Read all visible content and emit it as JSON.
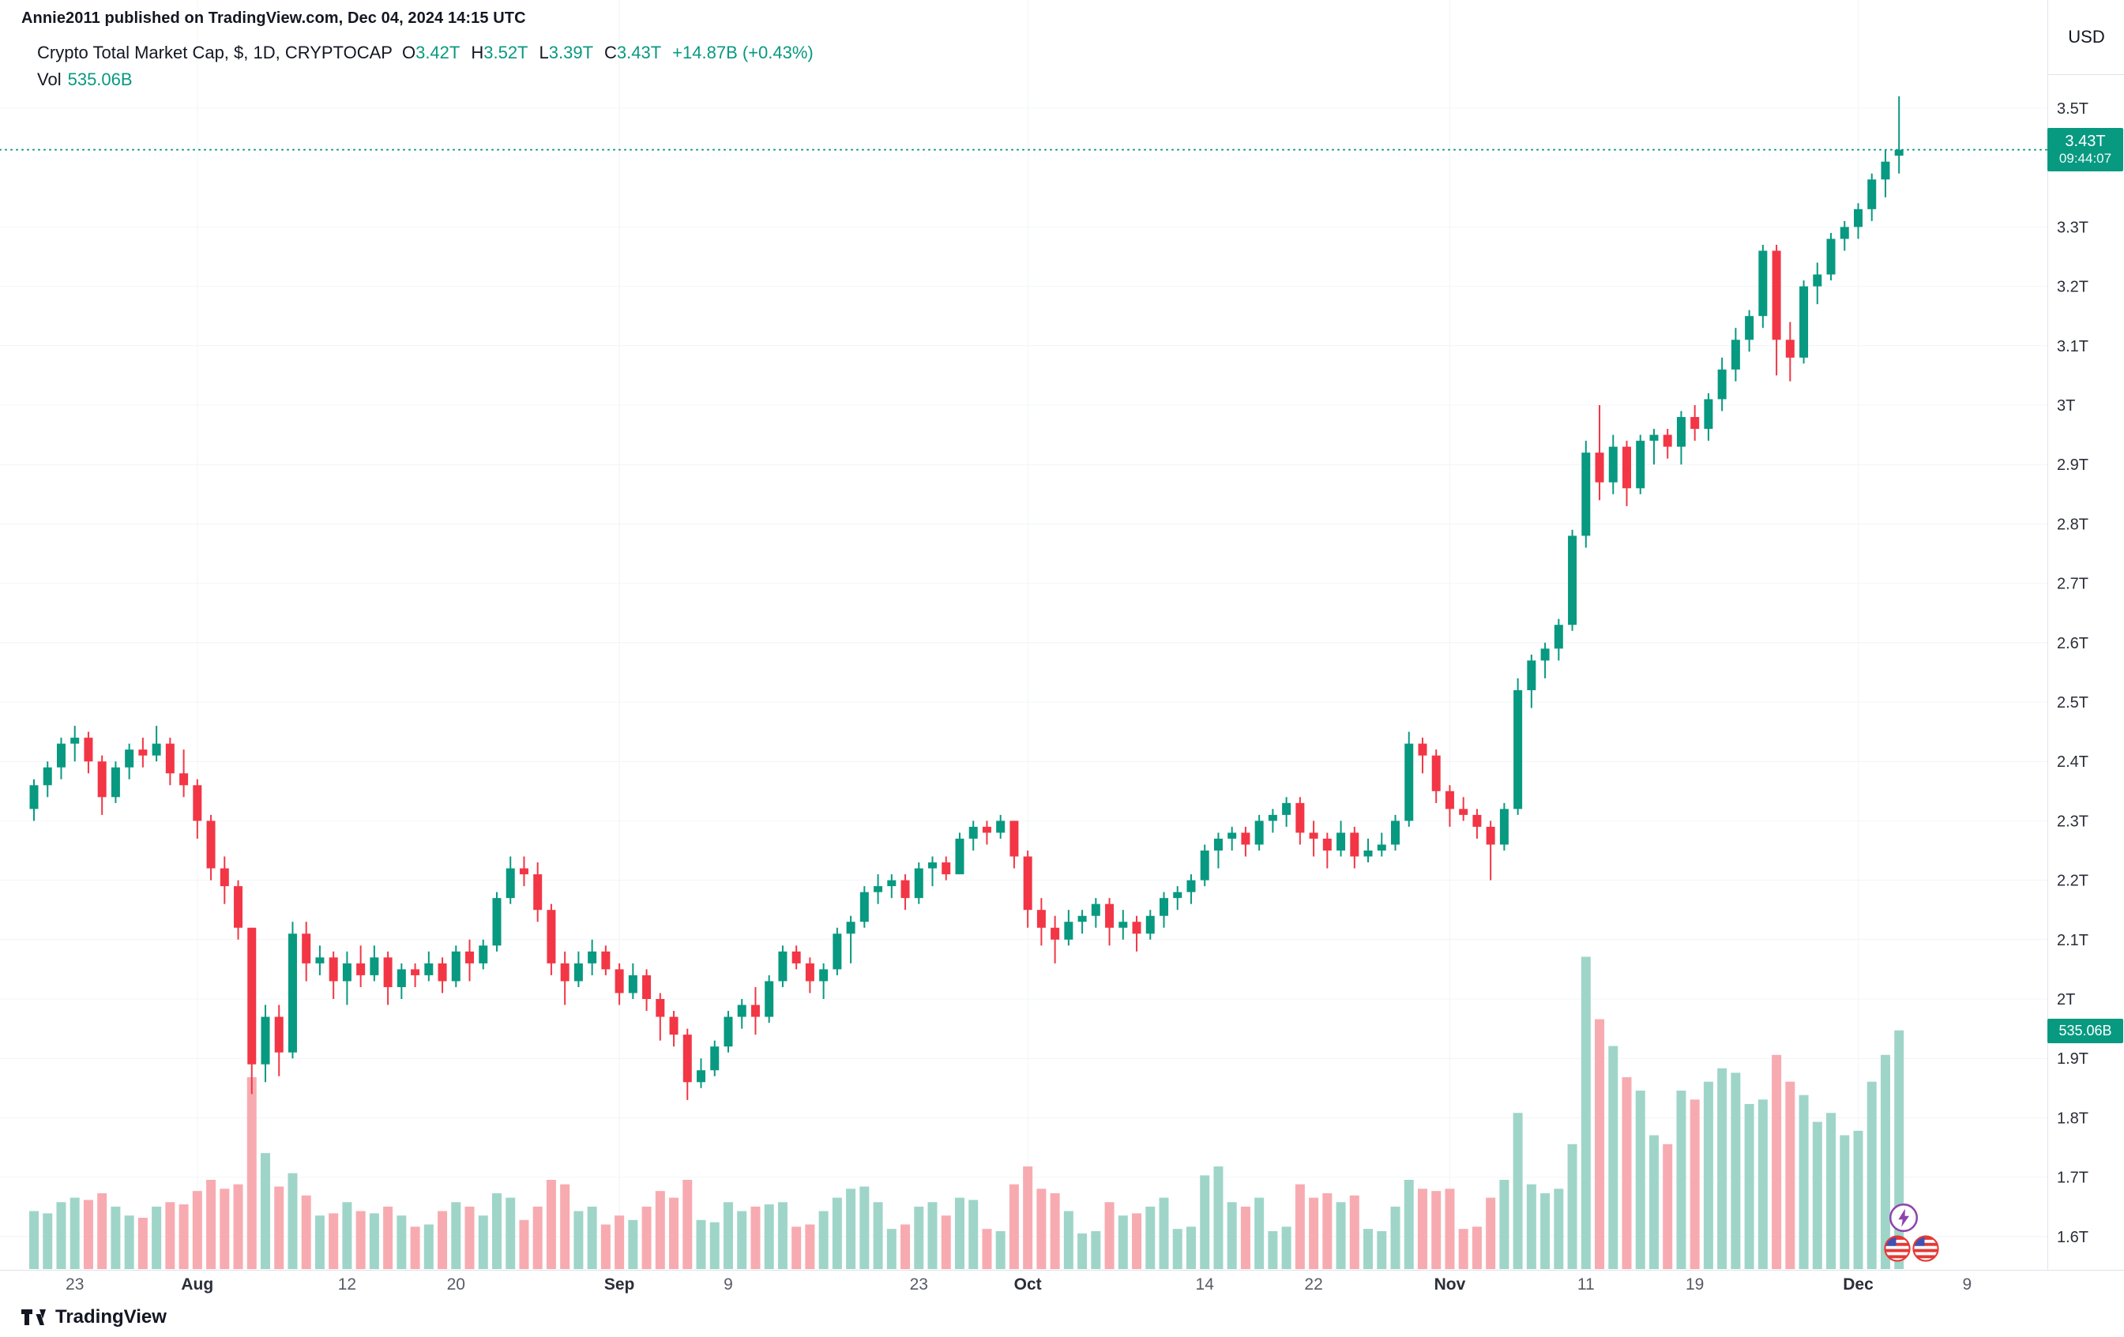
{
  "attribution": "Annie2011 published on TradingView.com, Dec 04, 2024 14:15 UTC",
  "legend": {
    "title": "Crypto Total Market Cap, $, 1D, CRYPTOCAP",
    "ohlc": [
      {
        "label": "O",
        "value": "3.42T"
      },
      {
        "label": "H",
        "value": "3.52T"
      },
      {
        "label": "L",
        "value": "3.39T"
      },
      {
        "label": "C",
        "value": "3.43T"
      }
    ],
    "change": "+14.87B (+0.43%)",
    "vol_label": "Vol",
    "vol_value": "535.06B"
  },
  "axis": {
    "currency": "USD",
    "price_badge": {
      "value": "3.43T",
      "countdown": "09:44:07"
    },
    "volume_badge": "535.06B"
  },
  "watermark": "TradingView",
  "colors": {
    "up": "#089981",
    "down": "#f23645",
    "volume_up": "#9fd5c9",
    "volume_down": "#f7abb0",
    "accent": "#089981",
    "badge_bg": "#089981",
    "grid": "#f2f4f8",
    "axis_line": "#e0e3eb",
    "axis_text": "#2a2e39",
    "axis_text_minor": "#585b65",
    "marker_purple": "#8e44ad",
    "marker_red": "#e53935",
    "marker_blue": "#3f51b5"
  },
  "chart_data": {
    "type": "candlestick",
    "title": "Crypto Total Market Cap, $, 1D, CRYPTOCAP",
    "symbol": "CRYPTOCAP:TOTAL",
    "interval": "1D",
    "price_unit": "T USD",
    "volume_unit": "B USD",
    "last_price": 3.43,
    "last_volume": 535.06,
    "ylim": [
      1.56,
      3.58
    ],
    "grid": "faint",
    "legend_position": "top-left",
    "y_ticks": [
      {
        "p": 3.5,
        "label": "3.5T"
      },
      {
        "p": 3.3,
        "label": "3.3T"
      },
      {
        "p": 3.2,
        "label": "3.2T"
      },
      {
        "p": 3.1,
        "label": "3.1T"
      },
      {
        "p": 3.0,
        "label": "3T"
      },
      {
        "p": 2.9,
        "label": "2.9T"
      },
      {
        "p": 2.8,
        "label": "2.8T"
      },
      {
        "p": 2.7,
        "label": "2.7T"
      },
      {
        "p": 2.6,
        "label": "2.6T"
      },
      {
        "p": 2.5,
        "label": "2.5T"
      },
      {
        "p": 2.4,
        "label": "2.4T"
      },
      {
        "p": 2.3,
        "label": "2.3T"
      },
      {
        "p": 2.2,
        "label": "2.2T"
      },
      {
        "p": 2.1,
        "label": "2.1T"
      },
      {
        "p": 2.0,
        "label": "2T"
      },
      {
        "p": 1.9,
        "label": "1.9T"
      },
      {
        "p": 1.8,
        "label": "1.8T"
      },
      {
        "p": 1.7,
        "label": "1.7T"
      },
      {
        "p": 1.6,
        "label": "1.6T"
      }
    ],
    "x_ticks": [
      {
        "label": "23",
        "index": 3
      },
      {
        "label": "Aug",
        "index": 12,
        "major": true
      },
      {
        "label": "12",
        "index": 23
      },
      {
        "label": "20",
        "index": 31
      },
      {
        "label": "Sep",
        "index": 43,
        "major": true
      },
      {
        "label": "9",
        "index": 51
      },
      {
        "label": "23",
        "index": 65
      },
      {
        "label": "Oct",
        "index": 73,
        "major": true
      },
      {
        "label": "14",
        "index": 86
      },
      {
        "label": "22",
        "index": 94
      },
      {
        "label": "Nov",
        "index": 104,
        "major": true
      },
      {
        "label": "11",
        "index": 114
      },
      {
        "label": "19",
        "index": 122
      },
      {
        "label": "Dec",
        "index": 134,
        "major": true
      },
      {
        "label": "9",
        "index": 142
      }
    ],
    "candles_format": [
      "date",
      "open",
      "high",
      "low",
      "close",
      "volume_billions"
    ],
    "candles": [
      [
        "Jul 20",
        2.32,
        2.37,
        2.3,
        2.36,
        130
      ],
      [
        "Jul 21",
        2.36,
        2.4,
        2.34,
        2.39,
        125
      ],
      [
        "Jul 22",
        2.39,
        2.44,
        2.37,
        2.43,
        150
      ],
      [
        "Jul 23",
        2.43,
        2.46,
        2.4,
        2.44,
        160
      ],
      [
        "Jul 24",
        2.44,
        2.45,
        2.38,
        2.4,
        155
      ],
      [
        "Jul 25",
        2.4,
        2.41,
        2.31,
        2.34,
        170
      ],
      [
        "Jul 26",
        2.34,
        2.4,
        2.33,
        2.39,
        140
      ],
      [
        "Jul 27",
        2.39,
        2.43,
        2.37,
        2.42,
        120
      ],
      [
        "Jul 28",
        2.42,
        2.44,
        2.39,
        2.41,
        115
      ],
      [
        "Jul 29",
        2.41,
        2.46,
        2.4,
        2.43,
        140
      ],
      [
        "Jul 30",
        2.43,
        2.44,
        2.36,
        2.38,
        150
      ],
      [
        "Jul 31",
        2.38,
        2.42,
        2.34,
        2.36,
        145
      ],
      [
        "Aug 1",
        2.36,
        2.37,
        2.27,
        2.3,
        175
      ],
      [
        "Aug 2",
        2.3,
        2.31,
        2.2,
        2.22,
        200
      ],
      [
        "Aug 3",
        2.22,
        2.24,
        2.16,
        2.19,
        180
      ],
      [
        "Aug 4",
        2.19,
        2.2,
        2.1,
        2.12,
        190
      ],
      [
        "Aug 5",
        2.12,
        2.12,
        1.84,
        1.89,
        430
      ],
      [
        "Aug 6",
        1.89,
        1.99,
        1.86,
        1.97,
        260
      ],
      [
        "Aug 7",
        1.97,
        1.99,
        1.87,
        1.91,
        185
      ],
      [
        "Aug 8",
        1.91,
        2.13,
        1.9,
        2.11,
        215
      ],
      [
        "Aug 9",
        2.11,
        2.13,
        2.03,
        2.06,
        165
      ],
      [
        "Aug 10",
        2.06,
        2.09,
        2.04,
        2.07,
        120
      ],
      [
        "Aug 11",
        2.07,
        2.08,
        2.0,
        2.03,
        125
      ],
      [
        "Aug 12",
        2.03,
        2.08,
        1.99,
        2.06,
        150
      ],
      [
        "Aug 13",
        2.06,
        2.09,
        2.02,
        2.04,
        130
      ],
      [
        "Aug 14",
        2.04,
        2.09,
        2.03,
        2.07,
        125
      ],
      [
        "Aug 15",
        2.07,
        2.08,
        1.99,
        2.02,
        140
      ],
      [
        "Aug 16",
        2.02,
        2.06,
        2.0,
        2.05,
        120
      ],
      [
        "Aug 17",
        2.05,
        2.06,
        2.02,
        2.04,
        95
      ],
      [
        "Aug 18",
        2.04,
        2.08,
        2.03,
        2.06,
        100
      ],
      [
        "Aug 19",
        2.06,
        2.07,
        2.01,
        2.03,
        130
      ],
      [
        "Aug 20",
        2.03,
        2.09,
        2.02,
        2.08,
        150
      ],
      [
        "Aug 21",
        2.08,
        2.1,
        2.03,
        2.06,
        140
      ],
      [
        "Aug 22",
        2.06,
        2.1,
        2.05,
        2.09,
        120
      ],
      [
        "Aug 23",
        2.09,
        2.18,
        2.08,
        2.17,
        170
      ],
      [
        "Aug 24",
        2.17,
        2.24,
        2.16,
        2.22,
        160
      ],
      [
        "Aug 25",
        2.22,
        2.24,
        2.19,
        2.21,
        110
      ],
      [
        "Aug 26",
        2.21,
        2.23,
        2.13,
        2.15,
        140
      ],
      [
        "Aug 27",
        2.15,
        2.16,
        2.04,
        2.06,
        200
      ],
      [
        "Aug 28",
        2.06,
        2.08,
        1.99,
        2.03,
        190
      ],
      [
        "Aug 29",
        2.03,
        2.08,
        2.02,
        2.06,
        130
      ],
      [
        "Aug 30",
        2.06,
        2.1,
        2.04,
        2.08,
        140
      ],
      [
        "Aug 31",
        2.08,
        2.09,
        2.04,
        2.05,
        100
      ],
      [
        "Sep 1",
        2.05,
        2.06,
        1.99,
        2.01,
        120
      ],
      [
        "Sep 2",
        2.01,
        2.06,
        2.0,
        2.04,
        110
      ],
      [
        "Sep 3",
        2.04,
        2.05,
        1.98,
        2.0,
        140
      ],
      [
        "Sep 4",
        2.0,
        2.01,
        1.93,
        1.97,
        175
      ],
      [
        "Sep 5",
        1.97,
        1.98,
        1.92,
        1.94,
        160
      ],
      [
        "Sep 6",
        1.94,
        1.95,
        1.83,
        1.86,
        200
      ],
      [
        "Sep 7",
        1.86,
        1.9,
        1.85,
        1.88,
        110
      ],
      [
        "Sep 8",
        1.88,
        1.93,
        1.87,
        1.92,
        105
      ],
      [
        "Sep 9",
        1.92,
        1.98,
        1.91,
        1.97,
        150
      ],
      [
        "Sep 10",
        1.97,
        2.0,
        1.95,
        1.99,
        130
      ],
      [
        "Sep 11",
        1.99,
        2.02,
        1.94,
        1.97,
        140
      ],
      [
        "Sep 12",
        1.97,
        2.04,
        1.96,
        2.03,
        145
      ],
      [
        "Sep 13",
        2.03,
        2.09,
        2.02,
        2.08,
        150
      ],
      [
        "Sep 14",
        2.08,
        2.09,
        2.05,
        2.06,
        95
      ],
      [
        "Sep 15",
        2.06,
        2.07,
        2.01,
        2.03,
        100
      ],
      [
        "Sep 16",
        2.03,
        2.06,
        2.0,
        2.05,
        130
      ],
      [
        "Sep 17",
        2.05,
        2.12,
        2.04,
        2.11,
        160
      ],
      [
        "Sep 18",
        2.11,
        2.14,
        2.06,
        2.13,
        180
      ],
      [
        "Sep 19",
        2.13,
        2.19,
        2.12,
        2.18,
        185
      ],
      [
        "Sep 20",
        2.18,
        2.21,
        2.16,
        2.19,
        150
      ],
      [
        "Sep 21",
        2.19,
        2.21,
        2.17,
        2.2,
        90
      ],
      [
        "Sep 22",
        2.2,
        2.21,
        2.15,
        2.17,
        100
      ],
      [
        "Sep 23",
        2.17,
        2.23,
        2.16,
        2.22,
        140
      ],
      [
        "Sep 24",
        2.22,
        2.24,
        2.19,
        2.23,
        150
      ],
      [
        "Sep 25",
        2.23,
        2.24,
        2.2,
        2.21,
        120
      ],
      [
        "Sep 26",
        2.21,
        2.28,
        2.21,
        2.27,
        160
      ],
      [
        "Sep 27",
        2.27,
        2.3,
        2.25,
        2.29,
        155
      ],
      [
        "Sep 28",
        2.29,
        2.3,
        2.26,
        2.28,
        90
      ],
      [
        "Sep 29",
        2.28,
        2.31,
        2.27,
        2.3,
        85
      ],
      [
        "Sep 30",
        2.3,
        2.3,
        2.22,
        2.24,
        190
      ],
      [
        "Oct 1",
        2.24,
        2.25,
        2.12,
        2.15,
        230
      ],
      [
        "Oct 2",
        2.15,
        2.17,
        2.09,
        2.12,
        180
      ],
      [
        "Oct 3",
        2.12,
        2.14,
        2.06,
        2.1,
        170
      ],
      [
        "Oct 4",
        2.1,
        2.15,
        2.09,
        2.13,
        130
      ],
      [
        "Oct 5",
        2.13,
        2.15,
        2.11,
        2.14,
        80
      ],
      [
        "Oct 6",
        2.14,
        2.17,
        2.12,
        2.16,
        85
      ],
      [
        "Oct 7",
        2.16,
        2.17,
        2.09,
        2.12,
        150
      ],
      [
        "Oct 8",
        2.12,
        2.15,
        2.1,
        2.13,
        120
      ],
      [
        "Oct 9",
        2.13,
        2.14,
        2.08,
        2.11,
        125
      ],
      [
        "Oct 10",
        2.11,
        2.15,
        2.1,
        2.14,
        140
      ],
      [
        "Oct 11",
        2.14,
        2.18,
        2.12,
        2.17,
        160
      ],
      [
        "Oct 12",
        2.17,
        2.19,
        2.15,
        2.18,
        90
      ],
      [
        "Oct 13",
        2.18,
        2.21,
        2.16,
        2.2,
        95
      ],
      [
        "Oct 14",
        2.2,
        2.26,
        2.19,
        2.25,
        210
      ],
      [
        "Oct 15",
        2.25,
        2.28,
        2.22,
        2.27,
        230
      ],
      [
        "Oct 16",
        2.27,
        2.29,
        2.25,
        2.28,
        150
      ],
      [
        "Oct 17",
        2.28,
        2.29,
        2.24,
        2.26,
        140
      ],
      [
        "Oct 18",
        2.26,
        2.31,
        2.25,
        2.3,
        160
      ],
      [
        "Oct 19",
        2.3,
        2.32,
        2.28,
        2.31,
        85
      ],
      [
        "Oct 20",
        2.31,
        2.34,
        2.29,
        2.33,
        95
      ],
      [
        "Oct 21",
        2.33,
        2.34,
        2.26,
        2.28,
        190
      ],
      [
        "Oct 22",
        2.28,
        2.3,
        2.24,
        2.27,
        160
      ],
      [
        "Oct 23",
        2.27,
        2.28,
        2.22,
        2.25,
        170
      ],
      [
        "Oct 24",
        2.25,
        2.3,
        2.24,
        2.28,
        150
      ],
      [
        "Oct 25",
        2.28,
        2.29,
        2.22,
        2.24,
        165
      ],
      [
        "Oct 26",
        2.24,
        2.27,
        2.23,
        2.25,
        90
      ],
      [
        "Oct 27",
        2.25,
        2.28,
        2.24,
        2.26,
        85
      ],
      [
        "Oct 28",
        2.26,
        2.31,
        2.25,
        2.3,
        140
      ],
      [
        "Oct 29",
        2.3,
        2.45,
        2.29,
        2.43,
        200
      ],
      [
        "Oct 30",
        2.43,
        2.44,
        2.38,
        2.41,
        180
      ],
      [
        "Oct 31",
        2.41,
        2.42,
        2.33,
        2.35,
        175
      ],
      [
        "Nov 1",
        2.35,
        2.36,
        2.29,
        2.32,
        180
      ],
      [
        "Nov 2",
        2.32,
        2.34,
        2.3,
        2.31,
        90
      ],
      [
        "Nov 3",
        2.31,
        2.32,
        2.27,
        2.29,
        95
      ],
      [
        "Nov 4",
        2.29,
        2.3,
        2.2,
        2.26,
        160
      ],
      [
        "Nov 5",
        2.26,
        2.33,
        2.25,
        2.32,
        200
      ],
      [
        "Nov 6",
        2.32,
        2.54,
        2.31,
        2.52,
        350
      ],
      [
        "Nov 7",
        2.52,
        2.58,
        2.49,
        2.57,
        190
      ],
      [
        "Nov 8",
        2.57,
        2.6,
        2.54,
        2.59,
        170
      ],
      [
        "Nov 9",
        2.59,
        2.64,
        2.57,
        2.63,
        180
      ],
      [
        "Nov 10",
        2.63,
        2.79,
        2.62,
        2.78,
        280
      ],
      [
        "Nov 11",
        2.78,
        2.94,
        2.76,
        2.92,
        700
      ],
      [
        "Nov 12",
        2.92,
        3.0,
        2.84,
        2.87,
        560
      ],
      [
        "Nov 13",
        2.87,
        2.95,
        2.85,
        2.93,
        500
      ],
      [
        "Nov 14",
        2.93,
        2.94,
        2.83,
        2.86,
        430
      ],
      [
        "Nov 15",
        2.86,
        2.95,
        2.85,
        2.94,
        400
      ],
      [
        "Nov 16",
        2.94,
        2.96,
        2.9,
        2.95,
        300
      ],
      [
        "Nov 17",
        2.95,
        2.96,
        2.91,
        2.93,
        280
      ],
      [
        "Nov 18",
        2.93,
        2.99,
        2.9,
        2.98,
        400
      ],
      [
        "Nov 19",
        2.98,
        3.0,
        2.94,
        2.96,
        380
      ],
      [
        "Nov 20",
        2.96,
        3.02,
        2.94,
        3.01,
        420
      ],
      [
        "Nov 21",
        3.01,
        3.08,
        2.99,
        3.06,
        450
      ],
      [
        "Nov 22",
        3.06,
        3.13,
        3.04,
        3.11,
        440
      ],
      [
        "Nov 23",
        3.11,
        3.16,
        3.09,
        3.15,
        370
      ],
      [
        "Nov 24",
        3.15,
        3.27,
        3.13,
        3.26,
        380
      ],
      [
        "Nov 25",
        3.26,
        3.27,
        3.05,
        3.11,
        480
      ],
      [
        "Nov 26",
        3.11,
        3.14,
        3.04,
        3.08,
        420
      ],
      [
        "Nov 27",
        3.08,
        3.21,
        3.07,
        3.2,
        390
      ],
      [
        "Nov 28",
        3.2,
        3.24,
        3.17,
        3.22,
        330
      ],
      [
        "Nov 29",
        3.22,
        3.29,
        3.21,
        3.28,
        350
      ],
      [
        "Nov 30",
        3.28,
        3.31,
        3.26,
        3.3,
        300
      ],
      [
        "Dec 1",
        3.3,
        3.34,
        3.28,
        3.33,
        310
      ],
      [
        "Dec 2",
        3.33,
        3.39,
        3.31,
        3.38,
        420
      ],
      [
        "Dec 3",
        3.38,
        3.43,
        3.35,
        3.41,
        480
      ],
      [
        "Dec 4",
        3.42,
        3.52,
        3.39,
        3.43,
        535.06
      ]
    ]
  }
}
